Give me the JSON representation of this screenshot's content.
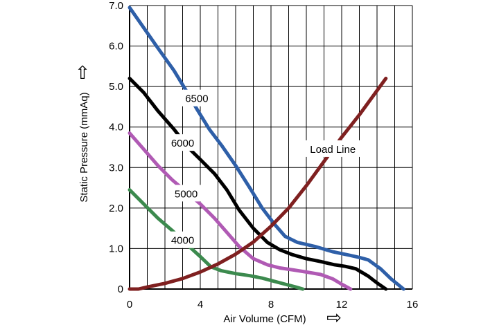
{
  "chart_data": {
    "type": "line",
    "xlabel": "Air Volume (CFM)",
    "ylabel": "Static Pressure (mmAq)",
    "xlim": [
      0,
      16
    ],
    "ylim": [
      0,
      7.0
    ],
    "x_ticks": [
      {
        "value": 0,
        "label": "0"
      },
      {
        "value": 4,
        "label": "4"
      },
      {
        "value": 8,
        "label": "8"
      },
      {
        "value": 12,
        "label": "12"
      },
      {
        "value": 16,
        "label": "16"
      }
    ],
    "y_ticks": [
      {
        "value": 0,
        "label": "0"
      },
      {
        "value": 1,
        "label": "1.0"
      },
      {
        "value": 2,
        "label": "2.0"
      },
      {
        "value": 3,
        "label": "3.0"
      },
      {
        "value": 4,
        "label": "4.0"
      },
      {
        "value": 5,
        "label": "5.0"
      },
      {
        "value": 6,
        "label": "6.0"
      },
      {
        "value": 7,
        "label": "7.0"
      }
    ],
    "grid": true,
    "series": [
      {
        "name": "6500",
        "color": "#2e5fa8",
        "x": [
          0,
          0.8,
          1.6,
          2.5,
          3.2,
          3.8,
          4.5,
          5.2,
          6.0,
          6.8,
          7.5,
          8.2,
          8.8,
          9.5,
          10.5,
          11.5,
          12.5,
          13.0,
          13.5,
          14.2,
          14.8,
          15.5
        ],
        "y": [
          6.95,
          6.45,
          5.95,
          5.4,
          4.9,
          4.45,
          3.95,
          3.55,
          3.05,
          2.5,
          2.0,
          1.6,
          1.3,
          1.15,
          1.05,
          0.92,
          0.83,
          0.78,
          0.72,
          0.5,
          0.25,
          0.0
        ]
      },
      {
        "name": "6000",
        "color": "#000000",
        "x": [
          0,
          0.8,
          1.6,
          2.5,
          3.3,
          4.0,
          4.8,
          5.5,
          6.2,
          7.0,
          7.8,
          8.5,
          9.2,
          10.0,
          10.8,
          11.6,
          12.2,
          12.8,
          13.5,
          14.0,
          14.5
        ],
        "y": [
          5.2,
          4.85,
          4.4,
          3.95,
          3.5,
          3.2,
          2.85,
          2.45,
          1.95,
          1.5,
          1.15,
          0.97,
          0.85,
          0.75,
          0.68,
          0.6,
          0.56,
          0.5,
          0.32,
          0.15,
          0.0
        ]
      },
      {
        "name": "5000",
        "color": "#b05ab4",
        "x": [
          0,
          0.8,
          1.6,
          2.4,
          3.2,
          4.0,
          4.8,
          5.5,
          6.2,
          7.0,
          7.8,
          8.5,
          9.3,
          10.0,
          10.8,
          11.5,
          12.0,
          12.5
        ],
        "y": [
          3.85,
          3.45,
          3.05,
          2.7,
          2.4,
          2.1,
          1.75,
          1.4,
          1.05,
          0.75,
          0.6,
          0.52,
          0.47,
          0.42,
          0.36,
          0.25,
          0.12,
          0.0
        ]
      },
      {
        "name": "4000",
        "color": "#3c8a4e",
        "x": [
          0,
          0.8,
          1.6,
          2.4,
          3.2,
          4.0,
          4.6,
          5.2,
          6.0,
          6.8,
          7.5,
          8.2,
          8.8,
          9.4,
          9.8
        ],
        "y": [
          2.45,
          2.1,
          1.75,
          1.45,
          1.12,
          0.8,
          0.55,
          0.45,
          0.38,
          0.33,
          0.27,
          0.19,
          0.12,
          0.05,
          0.0
        ]
      },
      {
        "name": "Load Line",
        "color": "#7f2020",
        "x": [
          0,
          0.5,
          1.0,
          2.0,
          3.0,
          4.0,
          5.0,
          6.0,
          7.0,
          8.0,
          9.0,
          10.0,
          11.0,
          12.0,
          13.0,
          14.0,
          14.5
        ],
        "y": [
          0,
          0.0,
          0.05,
          0.14,
          0.26,
          0.42,
          0.62,
          0.86,
          1.16,
          1.55,
          2.0,
          2.55,
          3.15,
          3.75,
          4.3,
          4.9,
          5.2
        ]
      }
    ],
    "annotations": [
      {
        "text": "6500",
        "x": 3.8,
        "y": 4.7
      },
      {
        "text": "6000",
        "x": 3.0,
        "y": 3.6
      },
      {
        "text": "5000",
        "x": 3.2,
        "y": 2.35
      },
      {
        "text": "4000",
        "x": 3.0,
        "y": 1.2
      },
      {
        "text": "Load Line",
        "x": 11.5,
        "y": 3.45
      }
    ],
    "x_arrow": "⇨",
    "y_arrow": "⇧"
  }
}
